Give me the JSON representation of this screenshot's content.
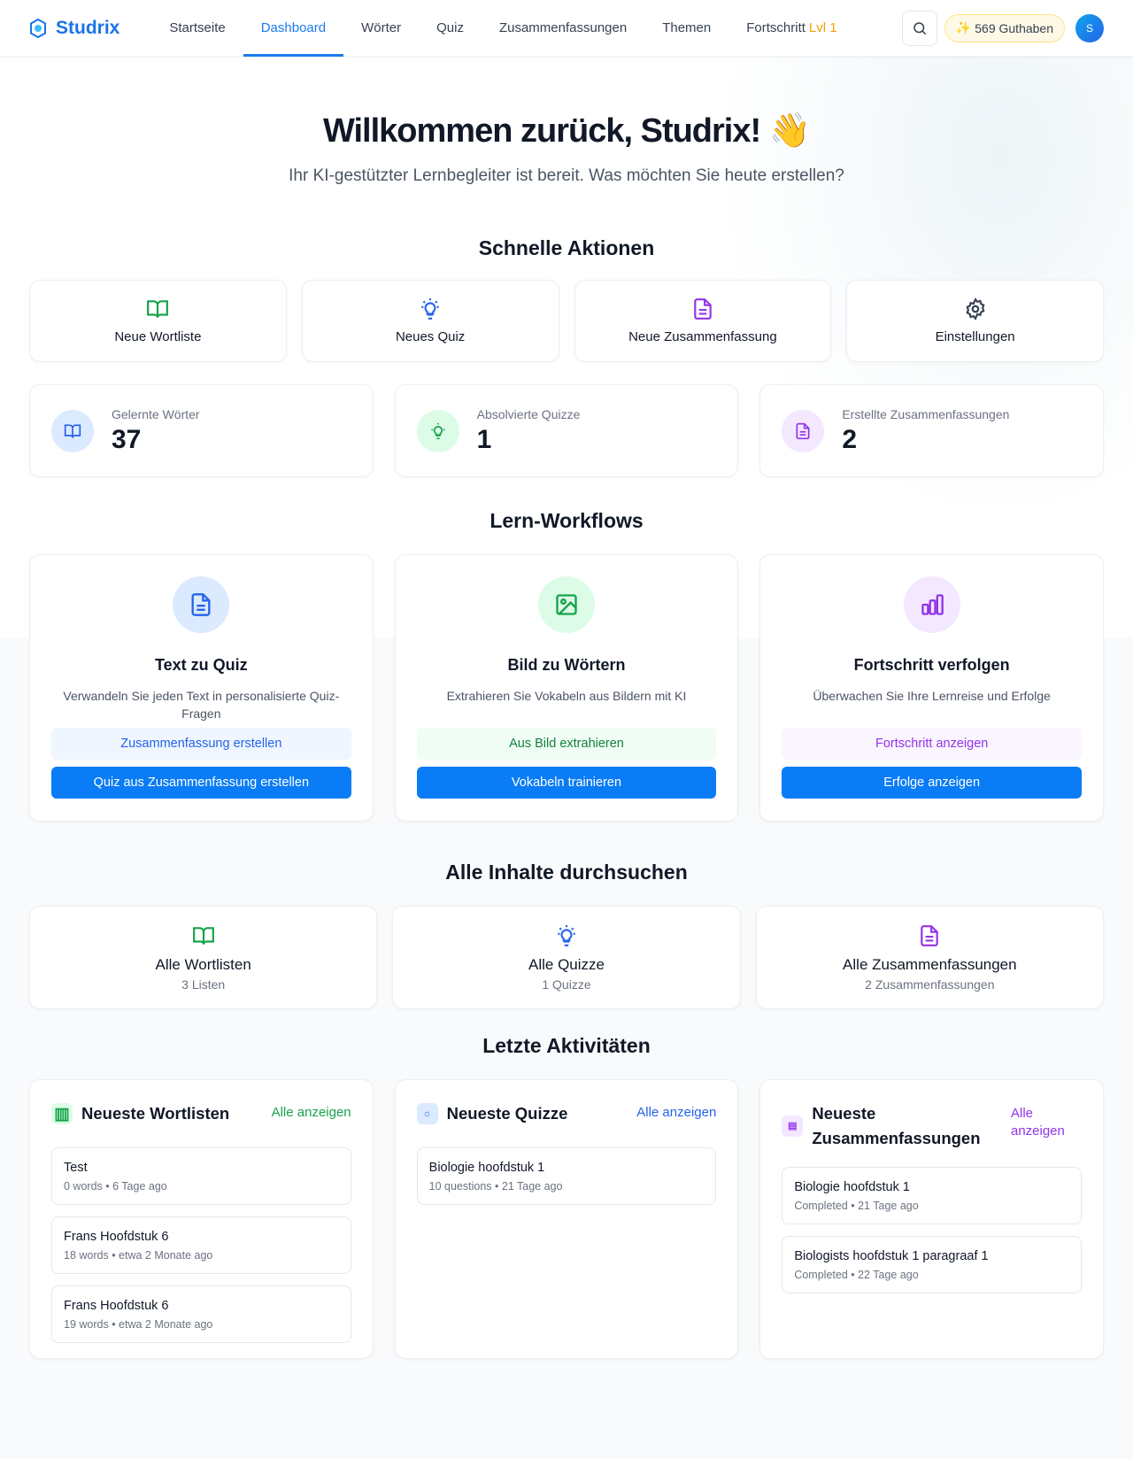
{
  "nav": {
    "brand": "Studrix",
    "links": [
      "Startseite",
      "Dashboard",
      "Wörter",
      "Quiz",
      "Zusammenfassungen",
      "Themen",
      "Fortschritt"
    ],
    "active": "Dashboard",
    "level": "Lvl 1",
    "credits": "569 Guthaben",
    "avatar": "S"
  },
  "hero": {
    "title": "Willkommen zurück, Studrix! 👋",
    "subtitle": "Ihr KI-gestützter Lernbegleiter ist bereit. Was möchten Sie heute erstellen?"
  },
  "quick": {
    "title": "Schnelle Aktionen",
    "items": [
      {
        "label": "Neue Wortliste",
        "icon": "book-icon"
      },
      {
        "label": "Neues Quiz",
        "icon": "lightbulb-icon"
      },
      {
        "label": "Neue Zusammenfassung",
        "icon": "document-icon"
      },
      {
        "label": "Einstellungen",
        "icon": "gear-icon"
      }
    ]
  },
  "stats": [
    {
      "label": "Gelernte Wörter",
      "value": "37"
    },
    {
      "label": "Absolvierte Quizze",
      "value": "1"
    },
    {
      "label": "Erstellte Zusammenfassungen",
      "value": "2"
    }
  ],
  "workflows": {
    "title": "Lern-Workflows",
    "items": [
      {
        "title": "Text zu Quiz",
        "desc": "Verwandeln Sie jeden Text in personalisierte Quiz-Fragen",
        "secondary": "Zusammenfassung erstellen",
        "primary": "Quiz aus Zusammenfassung erstellen"
      },
      {
        "title": "Bild zu Wörtern",
        "desc": "Extrahieren Sie Vokabeln aus Bildern mit KI",
        "secondary": "Aus Bild extrahieren",
        "primary": "Vokabeln trainieren"
      },
      {
        "title": "Fortschritt verfolgen",
        "desc": "Überwachen Sie Ihre Lernreise und Erfolge",
        "secondary": "Fortschritt anzeigen",
        "primary": "Erfolge anzeigen"
      }
    ]
  },
  "browse": {
    "title": "Alle Inhalte durchsuchen",
    "items": [
      {
        "title": "Alle Wortlisten",
        "sub": "3 Listen"
      },
      {
        "title": "Alle Quizze",
        "sub": "1 Quizze"
      },
      {
        "title": "Alle Zusammenfassungen",
        "sub": "2 Zusammenfassungen"
      }
    ]
  },
  "activity": {
    "title": "Letzte Aktivitäten",
    "view_all": "Alle anzeigen",
    "cols": [
      {
        "title": "Neueste Wortlisten",
        "items": [
          {
            "name": "Test",
            "meta": "0 words • 6 Tage ago"
          },
          {
            "name": "Frans Hoofdstuk 6",
            "meta": "18 words • etwa 2 Monate ago"
          },
          {
            "name": "Frans Hoofdstuk 6",
            "meta": "19 words • etwa 2 Monate ago"
          }
        ]
      },
      {
        "title": "Neueste Quizze",
        "items": [
          {
            "name": "Biologie hoofdstuk 1",
            "meta": "10 questions • 21 Tage ago"
          }
        ]
      },
      {
        "title": "Neueste Zusammenfassungen",
        "items": [
          {
            "name": "Biologie hoofdstuk 1",
            "meta": "Completed • 21 Tage ago"
          },
          {
            "name": "Biologists hoofdstuk 1 paragraaf 1",
            "meta": "Completed • 22 Tage ago"
          }
        ]
      }
    ]
  },
  "colors": {
    "primary": "#0a7cf5",
    "green": "#16a34a",
    "purple": "#9333ea",
    "level": "#f59e0b"
  }
}
